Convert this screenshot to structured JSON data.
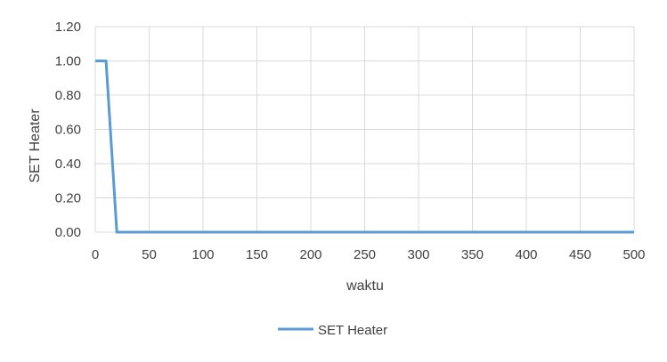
{
  "chart_data": {
    "type": "line",
    "title": "",
    "xlabel": "waktu",
    "ylabel": "SET Heater",
    "xlim": [
      0,
      500
    ],
    "ylim": [
      0,
      1.2
    ],
    "x_ticks": [
      "0",
      "50",
      "100",
      "150",
      "200",
      "250",
      "300",
      "350",
      "400",
      "450",
      "500"
    ],
    "y_ticks": [
      "0.00",
      "0.20",
      "0.40",
      "0.60",
      "0.80",
      "1.00",
      "1.20"
    ],
    "grid": true,
    "legend_position": "bottom",
    "series": [
      {
        "name": "SET Heater",
        "color": "#5B9BD5",
        "x": [
          0,
          10,
          20,
          500
        ],
        "y": [
          1.0,
          1.0,
          0.0,
          0.0
        ]
      }
    ]
  }
}
